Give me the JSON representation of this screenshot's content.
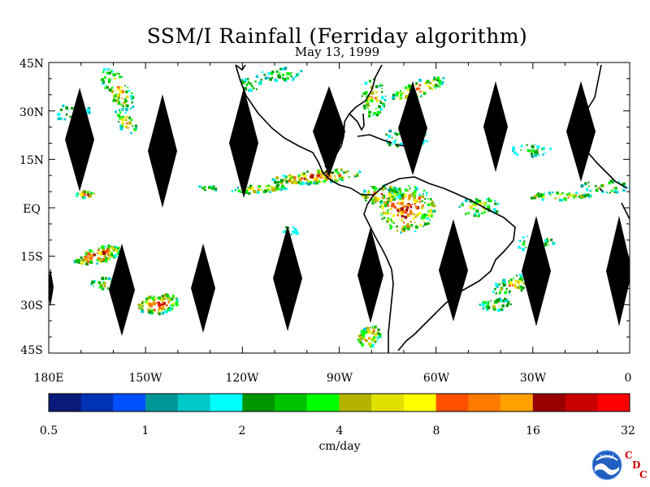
{
  "title": "SSM/I Rainfall (Ferriday algorithm)",
  "subtitle": "May 13, 1999",
  "map": {
    "lat_ticks": [
      "45N",
      "30N",
      "15N",
      "EQ",
      "15S",
      "30S",
      "45S"
    ],
    "lon_ticks": [
      "180E",
      "150W",
      "120W",
      "90W",
      "60W",
      "30W",
      "0"
    ],
    "extent": {
      "lon_min": -180,
      "lon_max": 0,
      "lat_min": -45,
      "lat_max": 45
    }
  },
  "colorbar": {
    "colors": [
      "#0a1a7a",
      "#0033b4",
      "#0050ff",
      "#009696",
      "#00c8c8",
      "#00ffff",
      "#009600",
      "#00c300",
      "#00ff00",
      "#b4b400",
      "#e1e100",
      "#ffff00",
      "#ff5000",
      "#ff7a00",
      "#ffa000",
      "#960000",
      "#c80000",
      "#ff0000"
    ],
    "tick_labels": [
      "0.5",
      "1",
      "2",
      "4",
      "8",
      "16",
      "32"
    ],
    "units": "cm/day"
  },
  "logos": {
    "noaa": "NOAA",
    "cdc_letters": [
      "C",
      "D",
      "C"
    ]
  },
  "chart_data": {
    "type": "heatmap",
    "title": "SSM/I Rainfall (Ferriday algorithm)",
    "subtitle": "May 13, 1999",
    "x_range": [
      -180,
      0
    ],
    "y_range": [
      -45,
      45
    ],
    "colorbar_ticks": [
      0.5,
      1,
      2,
      4,
      8,
      16,
      32
    ],
    "colorbar_units": "cm/day"
  }
}
